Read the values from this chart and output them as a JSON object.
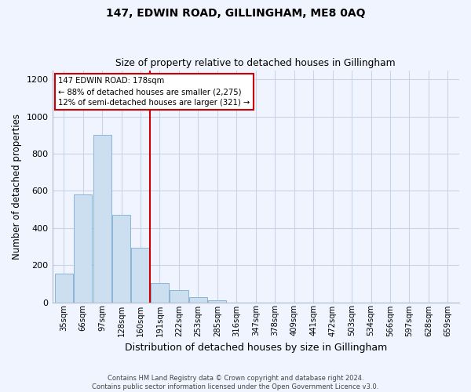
{
  "title": "147, EDWIN ROAD, GILLINGHAM, ME8 0AQ",
  "subtitle": "Size of property relative to detached houses in Gillingham",
  "xlabel": "Distribution of detached houses by size in Gillingham",
  "ylabel": "Number of detached properties",
  "bar_labels": [
    "35sqm",
    "66sqm",
    "97sqm",
    "128sqm",
    "160sqm",
    "191sqm",
    "222sqm",
    "253sqm",
    "285sqm",
    "316sqm",
    "347sqm",
    "378sqm",
    "409sqm",
    "441sqm",
    "472sqm",
    "503sqm",
    "534sqm",
    "566sqm",
    "597sqm",
    "628sqm",
    "659sqm"
  ],
  "bar_values": [
    155,
    580,
    900,
    470,
    295,
    105,
    65,
    28,
    12,
    0,
    0,
    0,
    0,
    0,
    0,
    0,
    0,
    0,
    0,
    0,
    0
  ],
  "bar_color": "#ccdff0",
  "bar_edge_color": "#8ab4d8",
  "vline_color": "#cc0000",
  "annotation_line1": "147 EDWIN ROAD: 178sqm",
  "annotation_line2": "← 88% of detached houses are smaller (2,275)",
  "annotation_line3": "12% of semi-detached houses are larger (321) →",
  "ylim": [
    0,
    1250
  ],
  "yticks": [
    0,
    200,
    400,
    600,
    800,
    1000,
    1200
  ],
  "footer_text": "Contains HM Land Registry data © Crown copyright and database right 2024.\nContains public sector information licensed under the Open Government Licence v3.0.",
  "bg_color": "#f0f4ff",
  "plot_bg_color": "#f0f4ff",
  "grid_color": "#c8d4e8"
}
